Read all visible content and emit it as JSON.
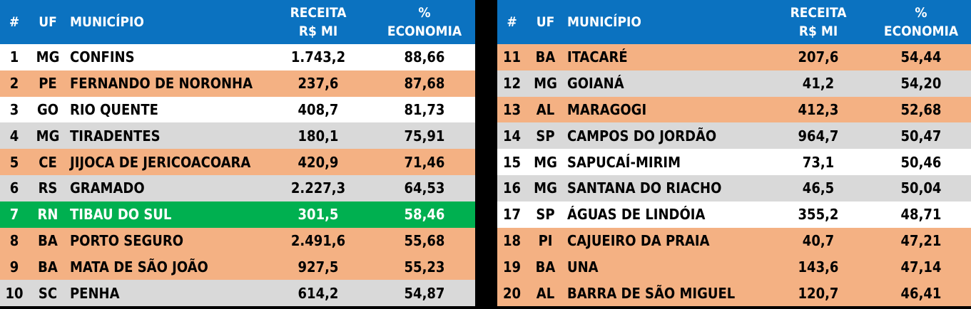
{
  "headers": {
    "num": "#",
    "uf": "UF",
    "municipio": "MUNICÍPIO",
    "receita_line1": "RECEITA",
    "receita_line2": "R$ MI",
    "economia_line1": "%",
    "economia_line2": "ECONOMIA"
  },
  "colors": {
    "header": "#0B72C0",
    "orange_row": "#F4B183",
    "gray_row": "#D9D9D9",
    "white_row": "#FFFFFF",
    "highlight_row": "#00B050"
  },
  "left_rows": [
    {
      "num": "1",
      "uf": "MG",
      "municipio": "CONFINS",
      "receita": "1.743,2",
      "economia": "88,66",
      "style": "white"
    },
    {
      "num": "2",
      "uf": "PE",
      "municipio": "FERNANDO DE NORONHA",
      "receita": "237,6",
      "economia": "87,68",
      "style": "orange"
    },
    {
      "num": "3",
      "uf": "GO",
      "municipio": "RIO QUENTE",
      "receita": "408,7",
      "economia": "81,73",
      "style": "white"
    },
    {
      "num": "4",
      "uf": "MG",
      "municipio": "TIRADENTES",
      "receita": "180,1",
      "economia": "75,91",
      "style": "gray"
    },
    {
      "num": "5",
      "uf": "CE",
      "municipio": "JIJOCA DE JERICOACOARA",
      "receita": "420,9",
      "economia": "71,46",
      "style": "orange"
    },
    {
      "num": "6",
      "uf": "RS",
      "municipio": "GRAMADO",
      "receita": "2.227,3",
      "economia": "64,53",
      "style": "gray"
    },
    {
      "num": "7",
      "uf": "RN",
      "municipio": "TIBAU DO SUL",
      "receita": "301,5",
      "economia": "58,46",
      "style": "green"
    },
    {
      "num": "8",
      "uf": "BA",
      "municipio": "PORTO SEGURO",
      "receita": "2.491,6",
      "economia": "55,68",
      "style": "orange"
    },
    {
      "num": "9",
      "uf": "BA",
      "municipio": "MATA DE SÃO JOÃO",
      "receita": "927,5",
      "economia": "55,23",
      "style": "orange"
    },
    {
      "num": "10",
      "uf": "SC",
      "municipio": "PENHA",
      "receita": "614,2",
      "economia": "54,87",
      "style": "gray"
    }
  ],
  "right_rows": [
    {
      "num": "11",
      "uf": "BA",
      "municipio": "ITACARÉ",
      "receita": "207,6",
      "economia": "54,44",
      "style": "orange"
    },
    {
      "num": "12",
      "uf": "MG",
      "municipio": "GOIANÁ",
      "receita": "41,2",
      "economia": "54,20",
      "style": "gray"
    },
    {
      "num": "13",
      "uf": "AL",
      "municipio": "MARAGOGI",
      "receita": "412,3",
      "economia": "52,68",
      "style": "orange"
    },
    {
      "num": "14",
      "uf": "SP",
      "municipio": "CAMPOS DO JORDÃO",
      "receita": "964,7",
      "economia": "50,47",
      "style": "gray"
    },
    {
      "num": "15",
      "uf": "MG",
      "municipio": "SAPUCAÍ-MIRIM",
      "receita": "73,1",
      "economia": "50,46",
      "style": "white"
    },
    {
      "num": "16",
      "uf": "MG",
      "municipio": "SANTANA DO RIACHO",
      "receita": "46,5",
      "economia": "50,04",
      "style": "gray"
    },
    {
      "num": "17",
      "uf": "SP",
      "municipio": "ÁGUAS DE LINDÓIA",
      "receita": "355,2",
      "economia": "48,71",
      "style": "white"
    },
    {
      "num": "18",
      "uf": "PI",
      "municipio": "CAJUEIRO DA PRAIA",
      "receita": "40,7",
      "economia": "47,21",
      "style": "orange"
    },
    {
      "num": "19",
      "uf": "BA",
      "municipio": "UNA",
      "receita": "143,6",
      "economia": "47,14",
      "style": "orange"
    },
    {
      "num": "20",
      "uf": "AL",
      "municipio": "BARRA DE SÃO MIGUEL",
      "receita": "120,7",
      "economia": "46,41",
      "style": "orange"
    }
  ]
}
